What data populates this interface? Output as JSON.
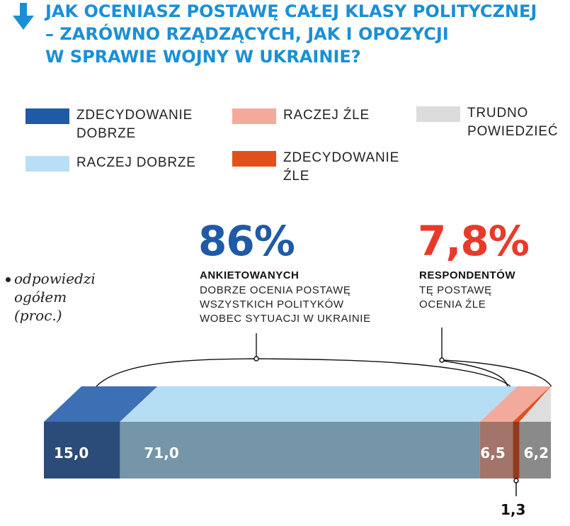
{
  "title_lines": [
    "JAK OCENIASZ POSTAWĘ CAŁEJ KLASY POLITYCZNEJ",
    "– ZARÓWNO RZĄDZĄCYCH, JAK I OPOZYCJI",
    "W SPRAWIE WOJNY W UKRAINIE?"
  ],
  "legend": [
    {
      "label_lines": [
        "ZDECYDOWANIE",
        "DOBRZE"
      ],
      "color": "#1f5aa6"
    },
    {
      "label_lines": [
        "RACZEJ DOBRZE"
      ],
      "color": "#b9dff6"
    },
    {
      "label_lines": [
        "RACZEJ ŹLE"
      ],
      "color": "#f3aa9a"
    },
    {
      "label_lines": [
        "ZDECYDOWANIE",
        "ŹLE"
      ],
      "color": "#e1501b"
    },
    {
      "label_lines": [
        "TRUDNO",
        "POWIEDZIEĆ"
      ],
      "color": "#dcdcdc"
    }
  ],
  "note_lines": [
    "odpowiedzi",
    "ogółem",
    "(proc.)"
  ],
  "callouts": {
    "good": {
      "big": "86%",
      "strong": "ANKIETOWANYCH",
      "lines": [
        "DOBRZE OCENIA POSTAWĘ",
        "WSZYSTKICH POLITYKÓW",
        "WOBEC SYTUACJI W UKRAINIE"
      ],
      "color": "#1f5aa6"
    },
    "bad": {
      "big": "7,8%",
      "strong": "RESPONDENTÓW",
      "lines": [
        "TĘ POSTAWĘ",
        "OCENIA ŹLE"
      ],
      "color": "#e83a2a"
    }
  },
  "chart_data": {
    "type": "bar",
    "orientation": "horizontal-stacked",
    "series": [
      {
        "name": "ZDECYDOWANIE DOBRZE",
        "value": 15.0,
        "label": "15,0",
        "top_color": "#3d6fb5",
        "front_color": "#2b4b79"
      },
      {
        "name": "RACZEJ DOBRZE",
        "value": 71.0,
        "label": "71,0",
        "top_color": "#b5def5",
        "front_color": "#7595a8"
      },
      {
        "name": "RACZEJ ŹLE",
        "value": 6.5,
        "label": "6,5",
        "top_color": "#f3aa9a",
        "front_color": "#a2746a"
      },
      {
        "name": "ZDECYDOWANIE ŹLE",
        "value": 1.3,
        "label": "1,3",
        "top_color": "#e1501b",
        "front_color": "#94391b"
      },
      {
        "name": "TRUDNO POWIEDZIEĆ",
        "value": 6.2,
        "label": "6,2",
        "top_color": "#dedede",
        "front_color": "#8a8a8a"
      }
    ],
    "total": 100
  }
}
